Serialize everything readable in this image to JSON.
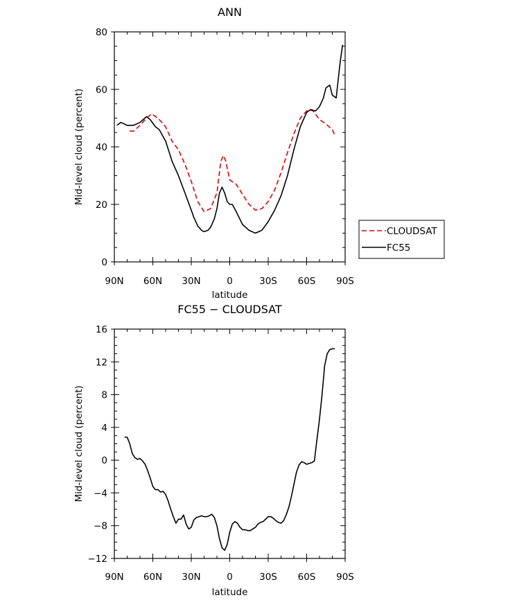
{
  "chart_data": [
    {
      "type": "line",
      "title": "ANN",
      "xlabel": "latitude",
      "ylabel": "Mid-level cloud (percent)",
      "xlim": [
        90,
        -90
      ],
      "ylim": [
        0,
        80
      ],
      "x_ticks": [
        90,
        60,
        30,
        0,
        -30,
        -60,
        -90
      ],
      "x_tick_labels": [
        "90N",
        "60N",
        "30N",
        "0",
        "30S",
        "60S",
        "90S"
      ],
      "y_ticks": [
        0,
        20,
        40,
        60,
        80
      ],
      "y_tick_labels": [
        "0",
        "20",
        "40",
        "60",
        "80"
      ],
      "grid": false,
      "legend": "right",
      "series": [
        {
          "name": "CLOUDSAT",
          "color": "#dd0000",
          "style": "dashed",
          "x": [
            78,
            75,
            70,
            65,
            61,
            56,
            50,
            45,
            40,
            35,
            30,
            25,
            20,
            15,
            10,
            7,
            5,
            3,
            0,
            -5,
            -10,
            -15,
            -20,
            -25,
            -30,
            -35,
            -40,
            -45,
            -50,
            -55,
            -60,
            -62,
            -65,
            -70,
            -75,
            -80,
            -82
          ],
          "y": [
            45.5,
            45.5,
            47.5,
            50,
            51.5,
            50,
            47,
            42,
            39,
            34,
            28,
            21,
            17.5,
            18.5,
            24,
            35,
            37,
            35,
            28.5,
            27,
            23.5,
            20,
            18,
            18.5,
            21,
            25,
            31,
            38,
            44.5,
            50,
            52.5,
            53,
            52.5,
            49.5,
            48,
            46,
            44
          ]
        },
        {
          "name": "FC55",
          "color": "#000000",
          "style": "solid",
          "x": [
            88,
            85,
            80,
            75,
            70,
            65,
            62,
            58,
            55,
            50,
            45,
            40,
            35,
            30,
            28,
            25,
            22,
            20,
            17,
            15,
            12,
            10,
            8,
            6,
            4,
            2,
            0,
            -2,
            -5,
            -10,
            -15,
            -20,
            -25,
            -30,
            -35,
            -40,
            -45,
            -50,
            -55,
            -60,
            -63,
            -67,
            -70,
            -73,
            -75,
            -78,
            -80,
            -83,
            -86,
            -88
          ],
          "y": [
            47.5,
            48.5,
            47.5,
            47.5,
            48.5,
            50.5,
            49.5,
            47,
            46,
            42,
            35,
            30,
            24,
            18,
            15.5,
            12.5,
            11,
            10.5,
            11,
            12,
            15,
            18.5,
            24,
            26,
            24,
            21,
            20,
            20,
            17.5,
            13,
            11,
            10,
            11,
            14,
            18,
            23,
            30,
            39,
            47,
            52,
            53,
            52.5,
            54,
            57,
            60.5,
            61.5,
            58,
            57,
            69,
            75.5
          ]
        }
      ]
    },
    {
      "type": "line",
      "title": "FC55 − CLOUDSAT",
      "xlabel": "latitude",
      "ylabel": "Mid-level cloud (percent)",
      "xlim": [
        90,
        -90
      ],
      "ylim": [
        -12,
        16
      ],
      "x_ticks": [
        90,
        60,
        30,
        0,
        -30,
        -60,
        -90
      ],
      "x_tick_labels": [
        "90N",
        "60N",
        "30N",
        "0",
        "30S",
        "60S",
        "90S"
      ],
      "y_ticks": [
        -12,
        -8,
        -4,
        0,
        4,
        8,
        12,
        16
      ],
      "y_tick_labels": [
        "−12",
        "−8",
        "−4",
        "0",
        "4",
        "8",
        "12",
        "16"
      ],
      "grid": false,
      "series": [
        {
          "color": "#000000",
          "style": "solid",
          "x": [
            82,
            80,
            78,
            76,
            74,
            72,
            70,
            68,
            66,
            64,
            62,
            60,
            58,
            56,
            54,
            52,
            50,
            48,
            46,
            44,
            42,
            40,
            38,
            36,
            34,
            32,
            30,
            28,
            26,
            24,
            22,
            20,
            18,
            16,
            14,
            12,
            10,
            8,
            6,
            4,
            2,
            0,
            -2,
            -4,
            -6,
            -8,
            -10,
            -12,
            -14,
            -16,
            -18,
            -20,
            -22,
            -24,
            -26,
            -28,
            -30,
            -32,
            -34,
            -36,
            -38,
            -40,
            -42,
            -44,
            -46,
            -48,
            -50,
            -52,
            -54,
            -56,
            -58,
            -60,
            -62,
            -64,
            -66,
            -68,
            -70,
            -72,
            -74,
            -76,
            -78,
            -80,
            -82
          ],
          "y": [
            2.8,
            2.8,
            2.0,
            0.8,
            0.3,
            0.1,
            0.2,
            -0.1,
            -0.5,
            -1.3,
            -2.2,
            -3.2,
            -3.6,
            -3.6,
            -3.9,
            -3.8,
            -4.2,
            -5.0,
            -6.0,
            -6.9,
            -7.7,
            -7.2,
            -7.2,
            -6.7,
            -7.8,
            -8.4,
            -8.2,
            -7.3,
            -7.0,
            -6.9,
            -6.8,
            -6.9,
            -6.9,
            -6.8,
            -6.6,
            -7.0,
            -8.0,
            -9.6,
            -10.7,
            -11.0,
            -10.3,
            -8.8,
            -7.8,
            -7.5,
            -7.7,
            -8.2,
            -8.5,
            -8.5,
            -8.6,
            -8.6,
            -8.4,
            -8.2,
            -7.8,
            -7.6,
            -7.5,
            -7.2,
            -6.9,
            -6.9,
            -7.1,
            -7.4,
            -7.6,
            -7.7,
            -7.4,
            -6.7,
            -5.8,
            -4.5,
            -3.0,
            -1.5,
            -0.6,
            -0.2,
            -0.3,
            -0.5,
            -0.4,
            -0.3,
            -0.1,
            2.5,
            5.0,
            8.0,
            11.5,
            13.0,
            13.5,
            13.6,
            13.6
          ]
        }
      ]
    }
  ]
}
